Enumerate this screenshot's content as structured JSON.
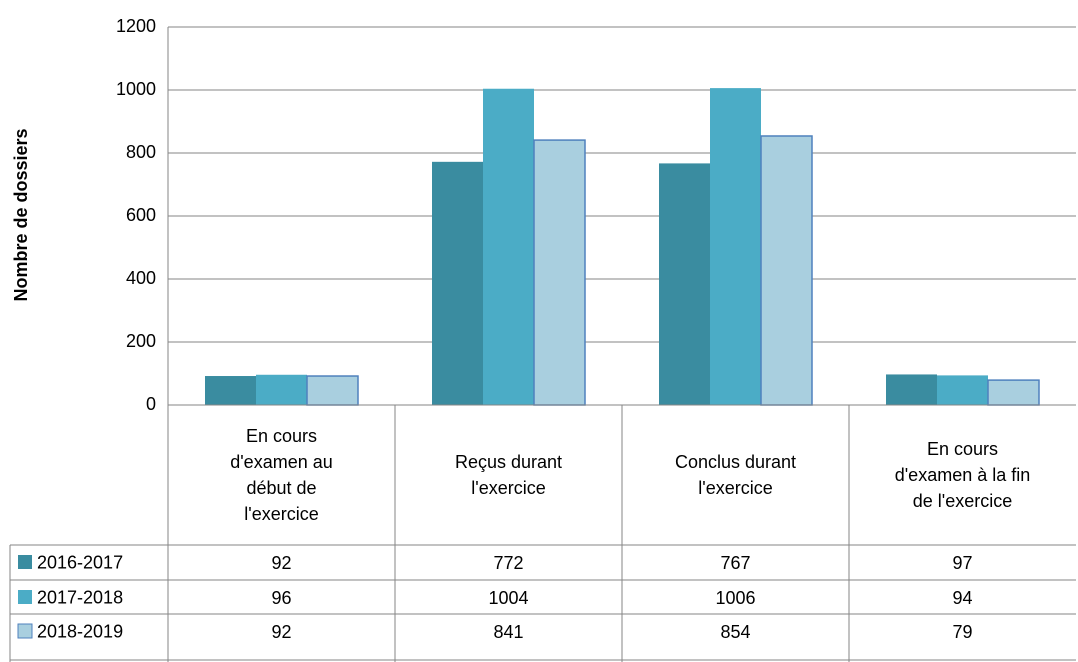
{
  "chart_data": {
    "type": "bar",
    "y_label": "Nombre de dossiers",
    "categories": [
      "En cours d'examen au début de l'exercice",
      "Reçus durant l'exercice",
      "Conclus durant l'exercice",
      "En cours d'examen à la fin de l'exercice"
    ],
    "series": [
      {
        "name": "2016-2017",
        "color": "#3a8ca0",
        "values": [
          92,
          772,
          767,
          97
        ]
      },
      {
        "name": "2017-2018",
        "color": "#4bacc6",
        "values": [
          96,
          1004,
          1006,
          94
        ]
      },
      {
        "name": "2018-2019",
        "color": "#a9cfdf",
        "values": [
          92,
          841,
          854,
          79
        ]
      }
    ],
    "ylim": [
      0,
      1200
    ],
    "yticks": [
      0,
      200,
      400,
      600,
      800,
      1000,
      1200
    ],
    "grid": true,
    "data_table": true
  }
}
